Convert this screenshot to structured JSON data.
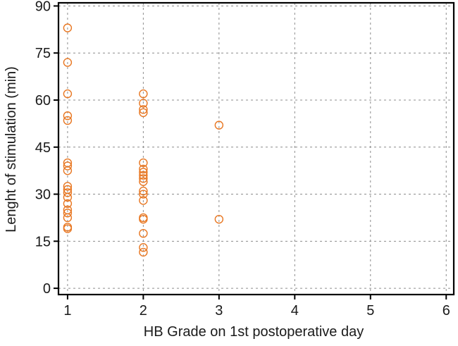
{
  "chart_data": {
    "type": "scatter",
    "xlabel": "HB Grade on 1st postoperative day",
    "ylabel": "Lenght of stimulation (min)",
    "xlim": [
      0.88,
      6.1
    ],
    "ylim": [
      -2,
      91
    ],
    "x_ticks": [
      1,
      2,
      3,
      4,
      5,
      6
    ],
    "y_ticks": [
      0,
      15,
      30,
      45,
      60,
      75,
      90
    ],
    "grid": true,
    "marker": "open-circle",
    "marker_color": "#e87722",
    "series": [
      {
        "points": [
          {
            "x": 1,
            "y": 83
          },
          {
            "x": 1,
            "y": 72
          },
          {
            "x": 1,
            "y": 62
          },
          {
            "x": 1,
            "y": 55
          },
          {
            "x": 1,
            "y": 53.5
          },
          {
            "x": 1,
            "y": 40
          },
          {
            "x": 1,
            "y": 39
          },
          {
            "x": 1,
            "y": 37.5
          },
          {
            "x": 1,
            "y": 32.5
          },
          {
            "x": 1,
            "y": 31.5
          },
          {
            "x": 1,
            "y": 30.5
          },
          {
            "x": 1,
            "y": 29
          },
          {
            "x": 1,
            "y": 27
          },
          {
            "x": 1,
            "y": 25
          },
          {
            "x": 1,
            "y": 24
          },
          {
            "x": 1,
            "y": 22.5
          },
          {
            "x": 1,
            "y": 19.5
          },
          {
            "x": 1,
            "y": 19
          },
          {
            "x": 2,
            "y": 62
          },
          {
            "x": 2,
            "y": 59
          },
          {
            "x": 2,
            "y": 57
          },
          {
            "x": 2,
            "y": 56
          },
          {
            "x": 2,
            "y": 40
          },
          {
            "x": 2,
            "y": 38
          },
          {
            "x": 2,
            "y": 37
          },
          {
            "x": 2,
            "y": 36
          },
          {
            "x": 2,
            "y": 35
          },
          {
            "x": 2,
            "y": 34
          },
          {
            "x": 2,
            "y": 31
          },
          {
            "x": 2,
            "y": 30
          },
          {
            "x": 2,
            "y": 28
          },
          {
            "x": 2,
            "y": 22.5
          },
          {
            "x": 2,
            "y": 22
          },
          {
            "x": 2,
            "y": 17.5
          },
          {
            "x": 2,
            "y": 13
          },
          {
            "x": 2,
            "y": 11.5
          },
          {
            "x": 3,
            "y": 52
          },
          {
            "x": 3,
            "y": 22
          }
        ]
      }
    ]
  }
}
